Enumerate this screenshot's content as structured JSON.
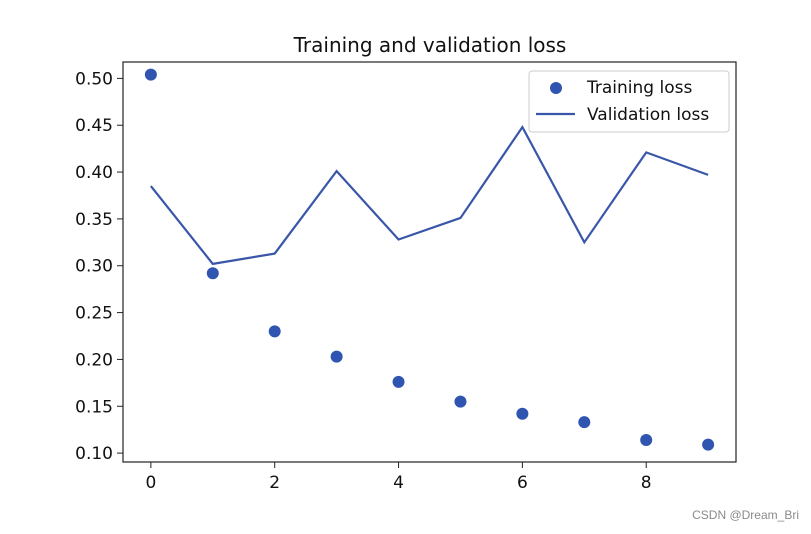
{
  "chart_data": {
    "type": "scatter+line",
    "title": "Training and validation loss",
    "xlabel": "",
    "ylabel": "",
    "x": [
      0,
      1,
      2,
      3,
      4,
      5,
      6,
      7,
      8,
      9
    ],
    "series": [
      {
        "name": "Training loss",
        "type": "scatter",
        "marker": "circle",
        "color": "#2f55b0",
        "values": [
          0.504,
          0.292,
          0.23,
          0.203,
          0.176,
          0.155,
          0.142,
          0.133,
          0.114,
          0.109
        ]
      },
      {
        "name": "Validation loss",
        "type": "line",
        "color": "#3a56a8",
        "values": [
          0.385,
          0.302,
          0.313,
          0.401,
          0.328,
          0.351,
          0.448,
          0.325,
          0.421,
          0.397
        ]
      }
    ],
    "xlim": [
      -0.45,
      9.45
    ],
    "ylim": [
      0.0905,
      0.5175
    ],
    "xticks": [
      "0",
      "2",
      "4",
      "6",
      "8"
    ],
    "yticks": [
      "0.10",
      "0.15",
      "0.20",
      "0.25",
      "0.30",
      "0.35",
      "0.40",
      "0.45",
      "0.50"
    ],
    "grid": false,
    "legend_position": "top-right"
  },
  "watermark": "CSDN @Dream_Bri"
}
